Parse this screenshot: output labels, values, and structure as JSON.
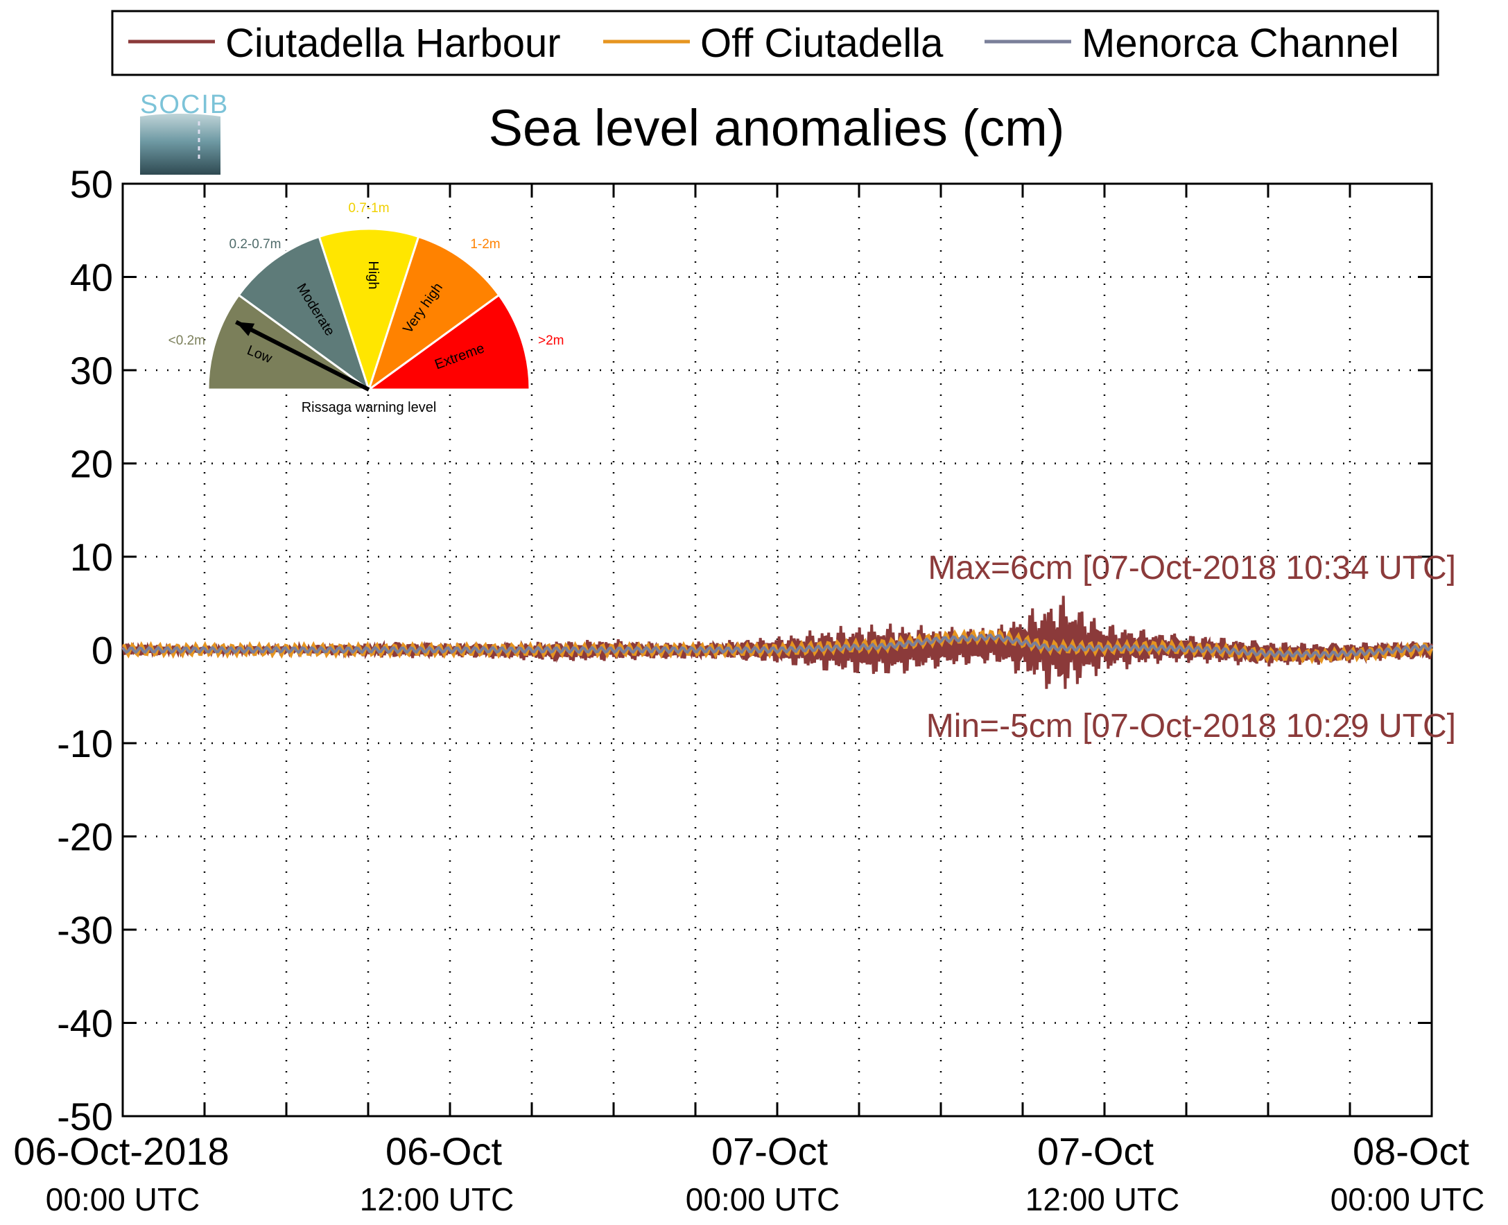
{
  "chart_data": {
    "type": "line",
    "title": "Sea level anomalies (cm)",
    "xlabel": "",
    "ylabel": "",
    "x_range": [
      "2018-10-06T00:00Z",
      "2018-10-08T00:00Z"
    ],
    "ylim": [
      -50,
      50
    ],
    "yticks": [
      50,
      40,
      30,
      20,
      10,
      0,
      -10,
      -20,
      -30,
      -40,
      -50
    ],
    "y_tick_labels": [
      "50",
      "40",
      "30",
      "20",
      "10",
      "0",
      "-10",
      "-20",
      "-30",
      "-40",
      "-50"
    ],
    "x_tick_labels": [
      {
        "main": "06-Oct-2018",
        "sub": "00:00 UTC"
      },
      {
        "main": "06-Oct",
        "sub": "12:00 UTC"
      },
      {
        "main": "07-Oct",
        "sub": "00:00 UTC"
      },
      {
        "main": "07-Oct",
        "sub": "12:00 UTC"
      },
      {
        "main": "08-Oct",
        "sub": "00:00 UTC"
      }
    ],
    "grid": true,
    "legend_position": "top",
    "series": [
      {
        "name": "Ciutadella Harbour",
        "color": "#8b3a3a",
        "envelope_x_hours": [
          0,
          2,
          4,
          6,
          8,
          10,
          12,
          14,
          16,
          18,
          20,
          22,
          24,
          26,
          28,
          30,
          32,
          33,
          34,
          34.5,
          35,
          36,
          38,
          40,
          42,
          44,
          46,
          48
        ],
        "envelope_min": [
          -0.7,
          -0.5,
          -0.4,
          -0.4,
          -0.6,
          -0.9,
          -0.8,
          -1.0,
          -1.3,
          -1.2,
          -1.0,
          -1.0,
          -1.5,
          -2.5,
          -3.0,
          -2.0,
          -1.5,
          -3.0,
          -4.5,
          -5.0,
          -4.0,
          -2.5,
          -1.5,
          -1.5,
          -1.8,
          -1.6,
          -1.2,
          -1.0
        ],
        "envelope_max": [
          0.7,
          0.5,
          0.4,
          0.5,
          0.6,
          0.9,
          0.8,
          0.8,
          1.0,
          1.2,
          0.8,
          1.0,
          1.5,
          2.5,
          3.0,
          2.5,
          2.5,
          4.0,
          5.5,
          6.0,
          5.0,
          3.0,
          2.0,
          1.5,
          1.0,
          0.8,
          0.9,
          1.0
        ]
      },
      {
        "name": "Off Ciutadella",
        "color": "#e69520",
        "trend_x_hours": [
          0,
          6,
          12,
          18,
          22,
          24,
          26,
          28,
          30,
          32,
          34,
          36,
          38,
          40,
          42,
          44,
          46,
          48
        ],
        "trend": [
          0,
          0,
          0,
          0,
          0,
          0,
          0.3,
          0.5,
          1.2,
          1.5,
          0.3,
          0.2,
          0.3,
          0.0,
          -0.5,
          -0.6,
          -0.3,
          0.2
        ],
        "amplitude": 0.6
      },
      {
        "name": "Menorca Channel",
        "color": "#7a7f99",
        "trend_x_hours": [
          0,
          6,
          12,
          18,
          22,
          24,
          26,
          28,
          30,
          32,
          34,
          36,
          38,
          40,
          42,
          44,
          46,
          48
        ],
        "trend": [
          0,
          0,
          0,
          0,
          0,
          0,
          0.2,
          0.4,
          1.1,
          1.4,
          0.2,
          0.2,
          0.2,
          0.0,
          -0.4,
          -0.5,
          -0.2,
          0.3
        ],
        "amplitude": 0.25
      }
    ],
    "annotations": [
      {
        "text": "Max=6cm [07-Oct-2018 10:34 UTC]",
        "color": "#8b3a3a"
      },
      {
        "text": "Min=-5cm [07-Oct-2018 10:29 UTC]",
        "color": "#8b3a3a"
      }
    ]
  },
  "logo": {
    "text": "SOCIB"
  },
  "gauge": {
    "caption": "Rissaga warning level",
    "level": 0.15,
    "segments": [
      {
        "label": "Low",
        "range": "<0.2m",
        "color": "#7b7f5a",
        "range_color": "#7b7f5a"
      },
      {
        "label": "Moderate",
        "range": "0.2-0.7m",
        "color": "#5e7b79",
        "range_color": "#4f6b6a"
      },
      {
        "label": "High",
        "range": "0.7-1m",
        "color": "#ffe600",
        "range_color": "#f0d000"
      },
      {
        "label": "Very high",
        "range": "1-2m",
        "color": "#ff8200",
        "range_color": "#ff8200"
      },
      {
        "label": "Extreme",
        "range": ">2m",
        "color": "#ff0000",
        "range_color": "#ff0000"
      }
    ]
  }
}
